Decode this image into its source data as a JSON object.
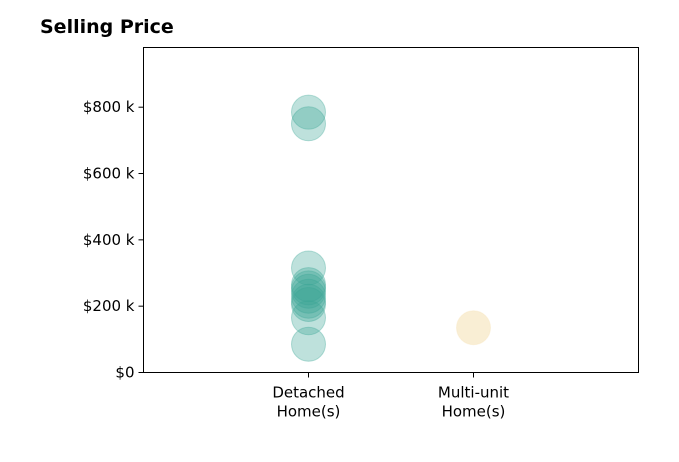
{
  "chart_data": {
    "type": "scatter",
    "title": "Selling Price",
    "xlabel": "",
    "ylabel": "",
    "categories": [
      {
        "line1": "Detached",
        "line2": "Home(s)"
      },
      {
        "line1": "Multi-unit",
        "line2": "Home(s)"
      }
    ],
    "xlim": [
      -1,
      2
    ],
    "ylim": [
      0,
      980
    ],
    "y_ticks": [
      {
        "value": 0,
        "label": "$0"
      },
      {
        "value": 200,
        "label": "$200 k"
      },
      {
        "value": 400,
        "label": "$400 k"
      },
      {
        "value": 600,
        "label": "$600 k"
      },
      {
        "value": 800,
        "label": "$800 k"
      }
    ],
    "grid": false,
    "series": [
      {
        "category_index": 0,
        "color": "#3aa596",
        "values": [
          785,
          750,
          315,
          265,
          255,
          245,
          230,
          215,
          205,
          165,
          85
        ]
      },
      {
        "category_index": 1,
        "color": "#f5e2b8",
        "values": [
          135
        ]
      }
    ]
  }
}
